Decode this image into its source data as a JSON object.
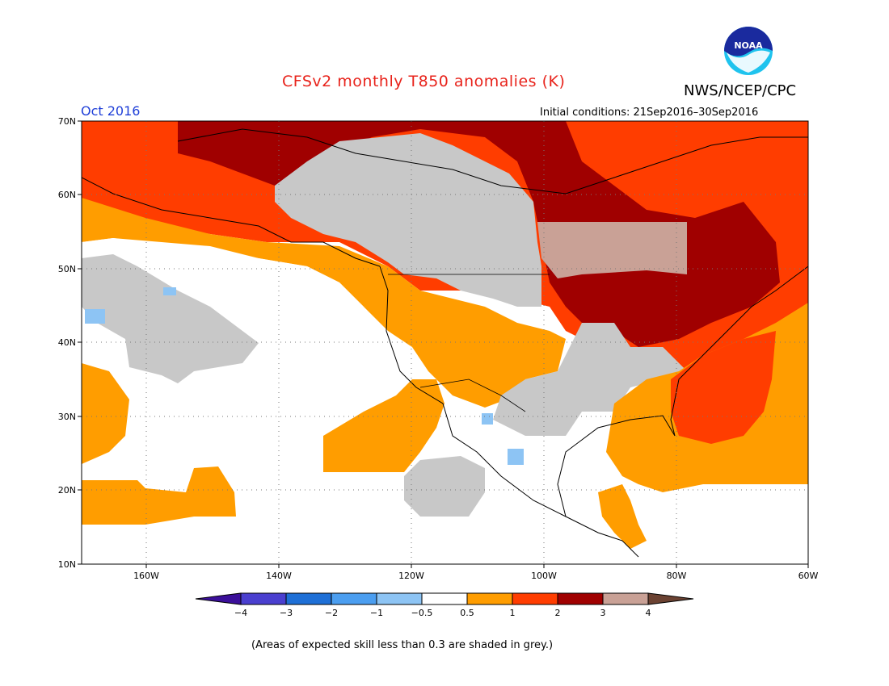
{
  "header": {
    "title": "CFSv2 monthly T850 anomalies (K)",
    "organization": "NWS/NCEP/CPC",
    "logo_text": "NOAA",
    "month": "Oct 2016",
    "initial_conditions": "Initial conditions: 21Sep2016–30Sep2016"
  },
  "map": {
    "lat_ticks": [
      "70N",
      "60N",
      "50N",
      "40N",
      "30N",
      "20N",
      "10N"
    ],
    "lon_ticks": [
      "160W",
      "140W",
      "120W",
      "100W",
      "80W",
      "60W"
    ]
  },
  "colorbar": {
    "bins": [
      {
        "color": "#3b0f9a"
      },
      {
        "color": "#4a3fcf"
      },
      {
        "color": "#1e6fd6"
      },
      {
        "color": "#4b9ef0"
      },
      {
        "color": "#8dc4f4"
      },
      {
        "color": "#ffffff"
      },
      {
        "color": "#ff9d00"
      },
      {
        "color": "#ff3d00"
      },
      {
        "color": "#a00000"
      },
      {
        "color": "#c9a196"
      },
      {
        "color": "#6b4232"
      }
    ],
    "tick_labels": [
      "−4",
      "−3",
      "−2",
      "−1",
      "−0.5",
      "0.5",
      "1",
      "2",
      "3",
      "4"
    ]
  },
  "footnote": "(Areas of expected skill less than 0.3 are shaded in grey.)",
  "colors": {
    "title": "#e8231b",
    "month": "#1f3fd8",
    "grey_low_skill": "#c8c8c8",
    "plus_0_5_to_1": "#ff9d00",
    "plus_1_to_2": "#ff3d00",
    "plus_2_to_3": "#a00000",
    "plus_3_to_4": "#c9a196",
    "minus_0_5_to_1": "#8dc4f4"
  }
}
